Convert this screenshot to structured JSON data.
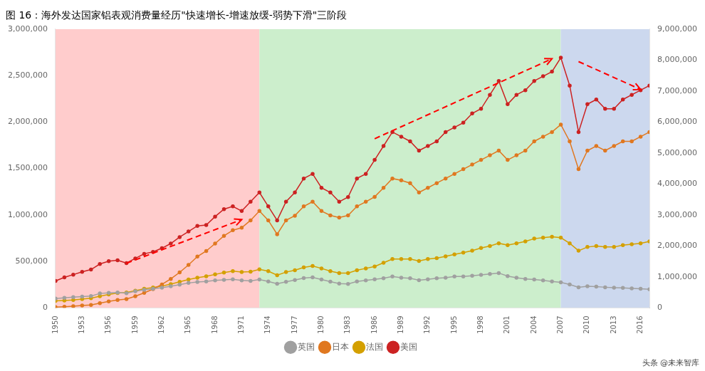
{
  "chart_data": {
    "type": "line",
    "title": "图 16：海外发达国家铝表观消费量经历\"快速增长-增速放缓-弱势下滑\"三阶段",
    "watermark": "头条 @未来智库",
    "x": [
      1950,
      1951,
      1952,
      1953,
      1954,
      1955,
      1956,
      1957,
      1958,
      1959,
      1960,
      1961,
      1962,
      1963,
      1964,
      1965,
      1966,
      1967,
      1968,
      1969,
      1970,
      1971,
      1972,
      1973,
      1974,
      1975,
      1976,
      1977,
      1978,
      1979,
      1980,
      1981,
      1982,
      1983,
      1984,
      1985,
      1986,
      1987,
      1988,
      1989,
      1990,
      1991,
      1992,
      1993,
      1994,
      1995,
      1996,
      1997,
      1998,
      1999,
      2000,
      2001,
      2002,
      2003,
      2004,
      2005,
      2006,
      2007,
      2008,
      2009,
      2010,
      2011,
      2012,
      2013,
      2014,
      2015,
      2016,
      2017
    ],
    "xlim": [
      1950,
      2017
    ],
    "xticks": [
      1950,
      1953,
      1956,
      1959,
      1962,
      1965,
      1968,
      1971,
      1974,
      1977,
      1980,
      1983,
      1986,
      1989,
      1992,
      1995,
      1998,
      2001,
      2004,
      2007,
      2010,
      2013,
      2016
    ],
    "ylim": [
      0,
      3000000
    ],
    "yticks": [
      0,
      {
        "value": 500000,
        "label": "500,000"
      },
      {
        "value": 1000000,
        "label": "1,000,000"
      },
      {
        "value": 1500000,
        "label": "1,500,000"
      },
      {
        "value": 2000000,
        "label": "2,000,000"
      },
      {
        "value": 2500000,
        "label": "2,500,000"
      },
      {
        "value": 3000000,
        "label": "3,000,000"
      }
    ],
    "y2lim": [
      0,
      9000000
    ],
    "y2ticks": [
      0,
      {
        "value": 1000000,
        "label": "1,000,000"
      },
      {
        "value": 2000000,
        "label": "2,000,000"
      },
      {
        "value": 3000000,
        "label": "3,000,000"
      },
      {
        "value": 4000000,
        "label": "4,000,000"
      },
      {
        "value": 5000000,
        "label": "5,000,000"
      },
      {
        "value": 6000000,
        "label": "6,000,000"
      },
      {
        "value": 7000000,
        "label": "7,000,000"
      },
      {
        "value": 8000000,
        "label": "8,000,000"
      },
      {
        "value": 9000000,
        "label": "9,000,000"
      }
    ],
    "grid": false,
    "legend": "bottom",
    "marker": "circle",
    "series": [
      {
        "name": "英国",
        "color": "#a0a0a0",
        "values": [
          100000,
          108000,
          115000,
          122000,
          128000,
          155000,
          162000,
          165000,
          158000,
          178000,
          195000,
          205000,
          218000,
          232000,
          250000,
          268000,
          278000,
          285000,
          295000,
          302000,
          308000,
          295000,
          290000,
          305000,
          285000,
          260000,
          280000,
          300000,
          320000,
          328000,
          305000,
          282000,
          262000,
          258000,
          285000,
          295000,
          308000,
          318000,
          338000,
          325000,
          318000,
          298000,
          308000,
          318000,
          325000,
          338000,
          338000,
          345000,
          355000,
          365000,
          375000,
          342000,
          325000,
          312000,
          305000,
          295000,
          285000,
          275000,
          252000,
          222000,
          232000,
          228000,
          222000,
          218000,
          215000,
          210000,
          205000,
          200000
        ]
      },
      {
        "name": "日本",
        "color": "#e07820",
        "values": [
          8000,
          12000,
          18000,
          25000,
          32000,
          50000,
          70000,
          85000,
          95000,
          125000,
          162000,
          202000,
          252000,
          312000,
          382000,
          462000,
          552000,
          612000,
          692000,
          775000,
          835000,
          862000,
          942000,
          1042000,
          942000,
          792000,
          942000,
          992000,
          1092000,
          1142000,
          1042000,
          995000,
          972000,
          995000,
          1092000,
          1142000,
          1195000,
          1292000,
          1392000,
          1372000,
          1342000,
          1242000,
          1292000,
          1342000,
          1392000,
          1442000,
          1492000,
          1542000,
          1592000,
          1642000,
          1692000,
          1592000,
          1642000,
          1692000,
          1792000,
          1842000,
          1892000,
          1972000,
          1792000,
          1492000,
          1692000,
          1742000,
          1692000,
          1742000,
          1792000,
          1792000,
          1842000,
          1892000
        ]
      },
      {
        "name": "法国",
        "color": "#d4a000",
        "values": [
          75000,
          80000,
          85000,
          95000,
          105000,
          125000,
          145000,
          160000,
          165000,
          185000,
          205000,
          220000,
          235000,
          255000,
          280000,
          305000,
          325000,
          340000,
          360000,
          380000,
          395000,
          385000,
          390000,
          415000,
          395000,
          352000,
          385000,
          405000,
          435000,
          450000,
          425000,
          395000,
          375000,
          375000,
          405000,
          425000,
          445000,
          485000,
          525000,
          525000,
          525000,
          505000,
          525000,
          535000,
          555000,
          575000,
          595000,
          615000,
          645000,
          665000,
          695000,
          675000,
          695000,
          715000,
          745000,
          755000,
          765000,
          755000,
          695000,
          615000,
          655000,
          665000,
          655000,
          655000,
          675000,
          685000,
          695000,
          715000
        ]
      },
      {
        "name": "美国",
        "color": "#cc2222",
        "values": [
          290000,
          328000,
          358000,
          388000,
          412000,
          472000,
          502000,
          512000,
          482000,
          532000,
          582000,
          602000,
          642000,
          692000,
          762000,
          822000,
          882000,
          892000,
          982000,
          1062000,
          1092000,
          1042000,
          1142000,
          1242000,
          1092000,
          942000,
          1142000,
          1242000,
          1392000,
          1442000,
          1292000,
          1242000,
          1142000,
          1192000,
          1392000,
          1442000,
          1592000,
          1742000,
          1892000,
          1842000,
          1792000,
          1692000,
          1742000,
          1792000,
          1892000,
          1942000,
          1992000,
          2092000,
          2142000,
          2292000,
          2442000,
          2192000,
          2292000,
          2342000,
          2442000,
          2492000,
          2542000,
          2692000,
          2392000,
          1892000,
          2192000,
          2242000,
          2142000,
          2142000,
          2242000,
          2292000,
          2342000,
          2392000
        ]
      }
    ],
    "phases": [
      {
        "start": 1950,
        "end": 1973,
        "color": "#ffcccc"
      },
      {
        "start": 1973,
        "end": 2007,
        "color": "#cceecc"
      },
      {
        "start": 2007,
        "end": 2017,
        "color": "#ccd8ee"
      }
    ],
    "arrows": [
      {
        "x1": 1958,
        "y1": 480000,
        "x2": 1971,
        "y2": 950000,
        "color": "red"
      },
      {
        "x1": 1986,
        "y1": 1820000,
        "x2": 2006,
        "y2": 2680000,
        "color": "red"
      },
      {
        "x1": 2009,
        "y1": 2650000,
        "x2": 2016,
        "y2": 2350000,
        "color": "red"
      }
    ]
  }
}
